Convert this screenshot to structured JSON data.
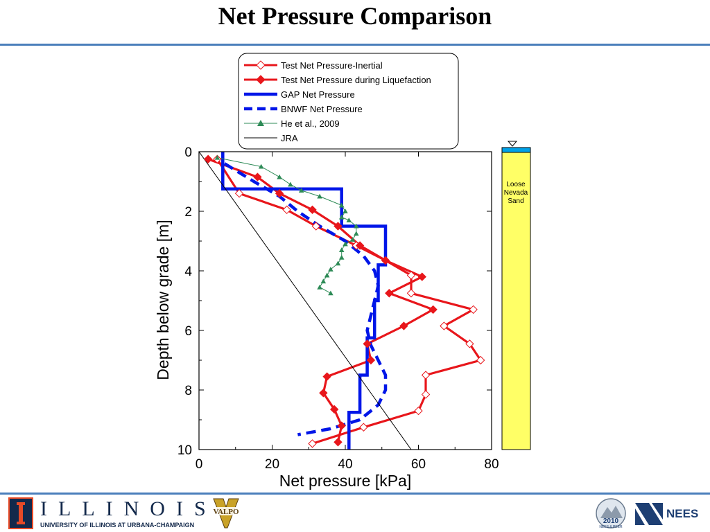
{
  "slide": {
    "title": "Net Pressure Comparison"
  },
  "chart_data": {
    "type": "line",
    "xlabel": "Net pressure [kPa]",
    "ylabel": "Depth below grade [m]",
    "xlim": [
      0,
      80
    ],
    "ylim": [
      10,
      0
    ],
    "xticks": [
      0,
      20,
      40,
      60,
      80
    ],
    "yticks": [
      0,
      2,
      4,
      6,
      8,
      10
    ],
    "grid": false,
    "legend_position": "top",
    "series": [
      {
        "name": "Test Net Pressure-Inertial",
        "color": "#e8161b",
        "style": "solid-open-diamond",
        "points": [
          [
            5,
            0.25
          ],
          [
            11,
            1.4
          ],
          [
            24,
            1.95
          ],
          [
            32,
            2.5
          ],
          [
            43,
            3.15
          ],
          [
            51,
            3.65
          ],
          [
            58,
            4.15
          ],
          [
            58,
            4.75
          ],
          [
            75,
            5.3
          ],
          [
            67,
            5.85
          ],
          [
            74,
            6.45
          ],
          [
            77,
            7.0
          ],
          [
            62,
            7.5
          ],
          [
            62,
            8.15
          ],
          [
            60,
            8.7
          ],
          [
            45,
            9.25
          ],
          [
            31,
            9.8
          ]
        ]
      },
      {
        "name": "Test Net Pressure during Liquefaction",
        "color": "#e8161b",
        "style": "solid-filled-diamond",
        "points": [
          [
            2.5,
            0.25
          ],
          [
            16,
            0.85
          ],
          [
            22,
            1.4
          ],
          [
            31,
            1.95
          ],
          [
            38,
            2.5
          ],
          [
            44,
            3.15
          ],
          [
            51,
            3.65
          ],
          [
            61,
            4.2
          ],
          [
            52,
            4.75
          ],
          [
            64,
            5.3
          ],
          [
            56,
            5.85
          ],
          [
            46,
            6.45
          ],
          [
            47,
            7.0
          ],
          [
            35,
            7.55
          ],
          [
            34,
            8.1
          ],
          [
            37,
            8.65
          ],
          [
            39,
            9.2
          ],
          [
            38,
            9.75
          ]
        ]
      },
      {
        "name": "GAP Net Pressure",
        "color": "#0016e8",
        "style": "solid-thick",
        "points": [
          [
            6.5,
            0
          ],
          [
            6.5,
            1.25
          ],
          [
            39,
            1.25
          ],
          [
            39,
            2.5
          ],
          [
            51,
            2.5
          ],
          [
            51,
            3.8
          ],
          [
            49,
            3.8
          ],
          [
            49,
            5.0
          ],
          [
            48,
            5.0
          ],
          [
            48,
            6.25
          ],
          [
            46,
            6.25
          ],
          [
            46,
            7.5
          ],
          [
            44,
            7.5
          ],
          [
            44,
            8.75
          ],
          [
            41,
            8.75
          ],
          [
            41,
            10
          ]
        ]
      },
      {
        "name": "BNWF Net Pressure",
        "color": "#0016e8",
        "style": "dashed-thick",
        "points": [
          [
            7,
            0.4
          ],
          [
            15,
            1.0
          ],
          [
            22,
            1.5
          ],
          [
            27,
            2.0
          ],
          [
            33,
            2.5
          ],
          [
            40,
            3.0
          ],
          [
            45,
            3.5
          ],
          [
            48,
            4.0
          ],
          [
            49,
            4.5
          ],
          [
            48,
            5.0
          ],
          [
            47,
            5.5
          ],
          [
            46,
            6.0
          ],
          [
            47,
            6.5
          ],
          [
            49,
            7.0
          ],
          [
            51,
            7.5
          ],
          [
            51,
            8.0
          ],
          [
            49,
            8.5
          ],
          [
            44,
            9.0
          ],
          [
            36,
            9.3
          ],
          [
            27,
            9.5
          ]
        ]
      },
      {
        "name": "He et al., 2009",
        "color": "#2e8b57",
        "style": "thin-filled-triangle",
        "points": [
          [
            5,
            0.2
          ],
          [
            17,
            0.5
          ],
          [
            22,
            0.85
          ],
          [
            25,
            1.1
          ],
          [
            28,
            1.3
          ],
          [
            33,
            1.5
          ],
          [
            39,
            1.8
          ],
          [
            40,
            2.0
          ],
          [
            39,
            2.2
          ],
          [
            41,
            2.3
          ],
          [
            43,
            2.5
          ],
          [
            43,
            2.75
          ],
          [
            42,
            2.95
          ],
          [
            40,
            3.1
          ],
          [
            39,
            3.3
          ],
          [
            39,
            3.55
          ],
          [
            38,
            3.75
          ],
          [
            36,
            3.95
          ],
          [
            35,
            4.15
          ],
          [
            34,
            4.35
          ],
          [
            33,
            4.55
          ],
          [
            36,
            4.75
          ]
        ]
      },
      {
        "name": "JRA",
        "color": "#000000",
        "style": "thin-solid",
        "points": [
          [
            0,
            0
          ],
          [
            58,
            10
          ]
        ]
      }
    ]
  },
  "soil_column": {
    "label_lines": [
      "Loose",
      "Nevada",
      "Sand"
    ],
    "sand_color": "#ffff66",
    "water_color": "#00a2e8"
  },
  "footer": {
    "university_name": "ILLINOIS",
    "university_subtitle": "UNIVERSITY OF ILLINOIS AT URBANA-CHAMPAIGN",
    "partner_logo_text": "VALPO",
    "conference_logo_text": "2010",
    "conference_logo_subtext": "NEES & PEER",
    "nees_text": "NEES"
  }
}
